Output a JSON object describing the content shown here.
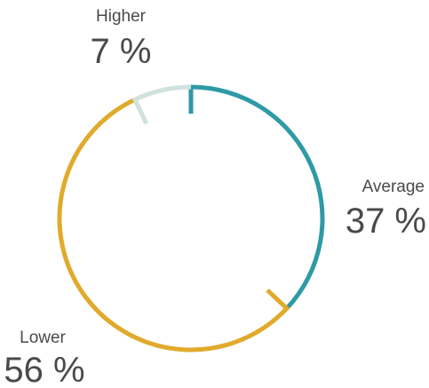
{
  "chart_data": {
    "type": "donut",
    "title": "",
    "unit": "%",
    "start_angle_deg": 0,
    "direction": "clockwise",
    "slices": [
      {
        "label": "Average",
        "value": 37,
        "value_text": "37 %",
        "color": "#2e9aa6"
      },
      {
        "label": "Lower",
        "value": 56,
        "value_text": "56 %",
        "color": "#e0aa2c"
      },
      {
        "label": "Higher",
        "value": 7,
        "value_text": "7 %",
        "color": "#cfe2dd"
      }
    ]
  }
}
